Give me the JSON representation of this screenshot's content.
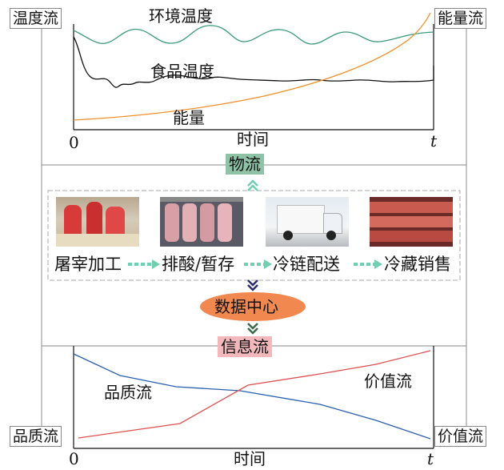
{
  "top_chart": {
    "left_box": "温度流",
    "right_box": "能量流",
    "series_env": "环境温度",
    "series_food": "食品温度",
    "series_energy": "能量",
    "x_origin": "0",
    "x_label": "时间",
    "x_end": "t"
  },
  "flow_labels": {
    "material": "物流",
    "data_center": "数据中心",
    "information": "信息流"
  },
  "stages": [
    "屠宰加工",
    "排酸/暂存",
    "冷链配送",
    "冷藏销售"
  ],
  "bottom_chart": {
    "left_box": "品质流",
    "right_box": "价值流",
    "series_quality": "品质流",
    "series_value": "价值流",
    "x_origin": "0",
    "x_label": "时间",
    "x_end": "t"
  },
  "colors": {
    "env_line": "#3a9a7a",
    "food_line": "#111111",
    "energy_line": "#f0902a",
    "quality_line": "#2a5fb0",
    "value_line": "#e05050",
    "material_bg": "#8fc3a6",
    "data_center_bg": "#f08850",
    "information_bg": "#f2b8bc",
    "arrow_green": "#6fcfb0",
    "chevron_dark": "#2b2f6b"
  }
}
